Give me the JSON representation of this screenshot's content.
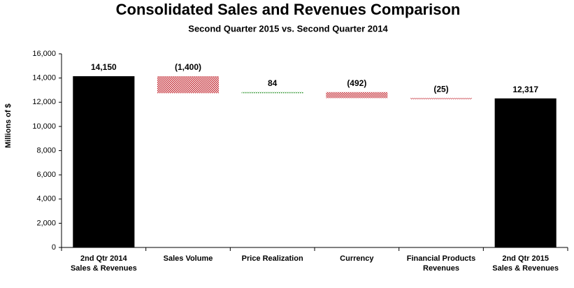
{
  "chart_data": {
    "type": "waterfall",
    "title": "Consolidated Sales and Revenues Comparison",
    "subtitle": "Second Quarter 2015 vs. Second Quarter 2014",
    "y_label": "Millions of $",
    "categories": [
      [
        "2nd Qtr 2014",
        "Sales & Revenues"
      ],
      [
        "Sales Volume"
      ],
      [
        "Price Realization"
      ],
      [
        "Currency"
      ],
      [
        "Financial Products",
        "Revenues"
      ],
      [
        "2nd Qtr 2015",
        "Sales & Revenues"
      ]
    ],
    "measures": [
      "total",
      "relative",
      "relative",
      "relative",
      "relative",
      "total"
    ],
    "values": [
      14150,
      -1400,
      84,
      -492,
      -25,
      12317
    ],
    "value_labels": [
      "14,150",
      "(1,400)",
      "84",
      "(492)",
      "(25)",
      "12,317"
    ],
    "colors": {
      "total": "#000000",
      "increase": "#1a8a1a",
      "decrease": "#c0202a"
    },
    "ylim": [
      0,
      16000
    ],
    "yticks": [
      0,
      {
        "value": 2000,
        "label": "2,000"
      },
      {
        "value": 4000,
        "label": "4,000"
      },
      {
        "value": 6000,
        "label": "6,000"
      },
      {
        "value": 8000,
        "label": "8,000"
      },
      {
        "value": 10000,
        "label": "10,000"
      },
      {
        "value": 12000,
        "label": "12,000"
      },
      {
        "value": 14000,
        "label": "14,000"
      },
      {
        "value": 16000,
        "label": "16,000"
      }
    ],
    "grid": false
  }
}
